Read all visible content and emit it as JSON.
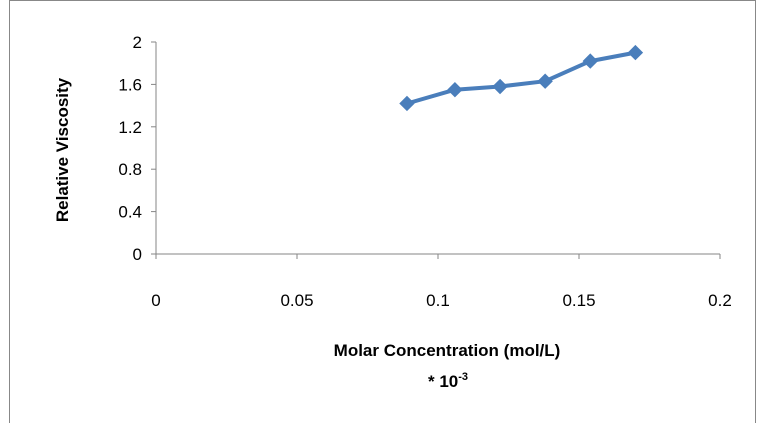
{
  "chart_data": {
    "type": "line",
    "title": "",
    "xlabel": "Molar Concentration (mol/L)",
    "xlabel_multiplier": "* 10",
    "xlabel_exponent": "-3",
    "ylabel": "Relative Viscosity",
    "xlim": [
      0,
      0.2
    ],
    "ylim": [
      0,
      2
    ],
    "x_ticks": [
      "0",
      "0.05",
      "0.1",
      "0.15",
      "0.2"
    ],
    "y_ticks": [
      "0",
      "0.4",
      "0.8",
      "1.2",
      "1.6",
      "2"
    ],
    "grid": false,
    "legend": "none",
    "series": [
      {
        "color": "#4A7EBB",
        "marker": "diamond",
        "x": [
          0.089,
          0.106,
          0.122,
          0.138,
          0.154,
          0.17
        ],
        "y": [
          1.42,
          1.55,
          1.58,
          1.63,
          1.82,
          1.9
        ]
      }
    ]
  }
}
